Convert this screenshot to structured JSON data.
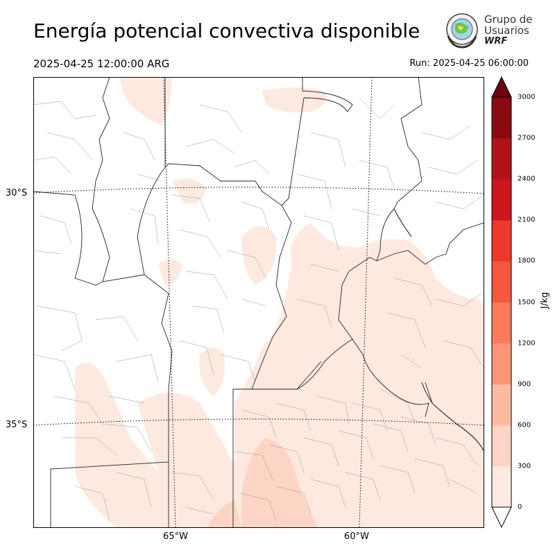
{
  "title": "Energía potencial convectiva disponible",
  "valid_time": "2025-04-25 12:00:00 ARG",
  "run_time": "Run: 2025-04-25 06:00:00",
  "logo": {
    "line1": "Grupo de",
    "line2": "Usuarios",
    "line3": "WRF"
  },
  "lat_labels": [
    "30°S",
    "35°S"
  ],
  "lon_labels": [
    "65°W",
    "60°W"
  ],
  "colorbar": {
    "label": "J/kg",
    "ticks": [
      "0",
      "300",
      "600",
      "900",
      "1200",
      "1500",
      "1800",
      "2100",
      "2400",
      "2700",
      "3000"
    ],
    "colors": [
      "#fee9e1",
      "#fcd5c4",
      "#fcbba1",
      "#fc9576",
      "#fb7a5a",
      "#f6573f",
      "#ec392c",
      "#cb171c",
      "#b11319",
      "#890a11"
    ],
    "over_color": "#6b0410",
    "under_color": "#ffffff"
  },
  "shading_color": "#fee9e1"
}
